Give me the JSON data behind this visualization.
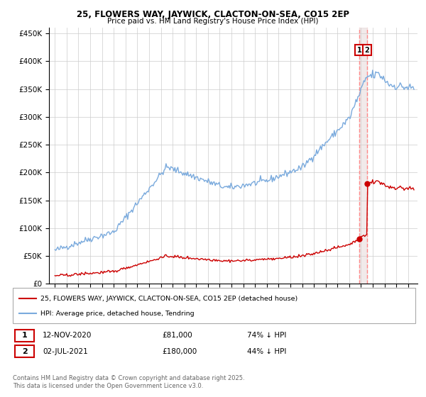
{
  "title1": "25, FLOWERS WAY, JAYWICK, CLACTON-ON-SEA, CO15 2EP",
  "title2": "Price paid vs. HM Land Registry's House Price Index (HPI)",
  "legend1": "25, FLOWERS WAY, JAYWICK, CLACTON-ON-SEA, CO15 2EP (detached house)",
  "legend2": "HPI: Average price, detached house, Tendring",
  "annotation1_label": "1",
  "annotation1_date": "12-NOV-2020",
  "annotation1_price": "£81,000",
  "annotation1_hpi": "74% ↓ HPI",
  "annotation2_label": "2",
  "annotation2_date": "02-JUL-2021",
  "annotation2_price": "£180,000",
  "annotation2_hpi": "44% ↓ HPI",
  "footer": "Contains HM Land Registry data © Crown copyright and database right 2025.\nThis data is licensed under the Open Government Licence v3.0.",
  "hpi_color": "#7aaadd",
  "price_color": "#cc0000",
  "dashed_color": "#ff8888",
  "shade_color": "#ddcccc",
  "annotation_box_color": "#cc0000",
  "ylim": [
    0,
    460000
  ],
  "yticks": [
    0,
    50000,
    100000,
    150000,
    200000,
    250000,
    300000,
    350000,
    400000,
    450000
  ],
  "t1": 2020.87,
  "t2": 2021.5
}
